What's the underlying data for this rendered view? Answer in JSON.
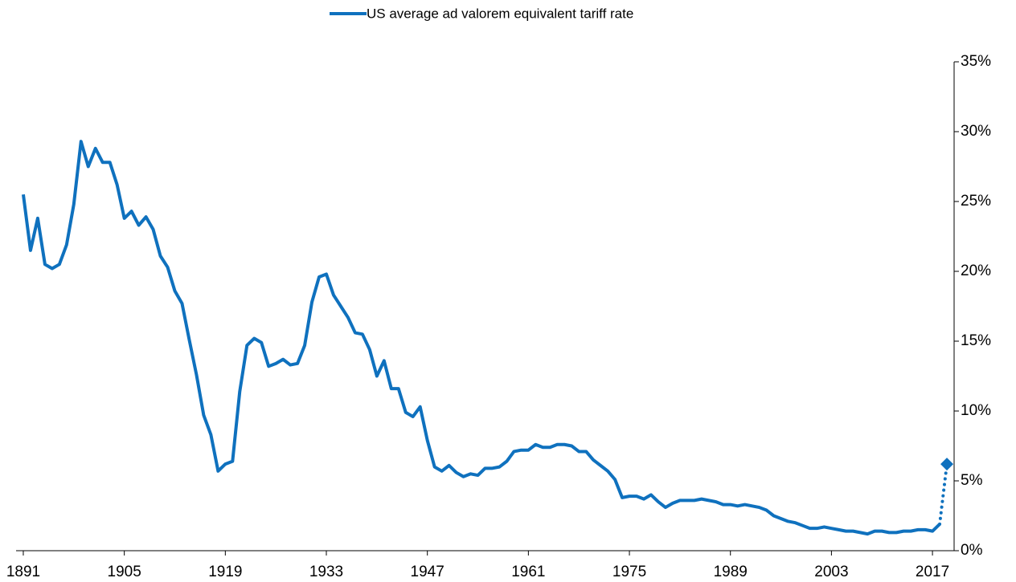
{
  "chart_data": {
    "type": "line",
    "x": [
      1891,
      1892,
      1893,
      1894,
      1895,
      1896,
      1897,
      1898,
      1899,
      1900,
      1901,
      1902,
      1903,
      1904,
      1905,
      1906,
      1907,
      1908,
      1909,
      1910,
      1911,
      1912,
      1913,
      1914,
      1915,
      1916,
      1917,
      1918,
      1919,
      1920,
      1921,
      1922,
      1923,
      1924,
      1925,
      1926,
      1927,
      1928,
      1929,
      1930,
      1931,
      1932,
      1933,
      1934,
      1935,
      1936,
      1937,
      1938,
      1939,
      1940,
      1941,
      1942,
      1943,
      1944,
      1945,
      1946,
      1947,
      1948,
      1949,
      1950,
      1951,
      1952,
      1953,
      1954,
      1955,
      1956,
      1957,
      1958,
      1959,
      1960,
      1961,
      1962,
      1963,
      1964,
      1965,
      1966,
      1967,
      1968,
      1969,
      1970,
      1971,
      1972,
      1973,
      1974,
      1975,
      1976,
      1977,
      1978,
      1979,
      1980,
      1981,
      1982,
      1983,
      1984,
      1985,
      1986,
      1987,
      1988,
      1989,
      1990,
      1991,
      1992,
      1993,
      1994,
      1995,
      1996,
      1997,
      1998,
      1999,
      2000,
      2001,
      2002,
      2003,
      2004,
      2005,
      2006,
      2007,
      2008,
      2009,
      2010,
      2011,
      2012,
      2013,
      2014,
      2015,
      2016,
      2017,
      2018
    ],
    "series": [
      {
        "name": "US average ad valorem equivalent tariff rate",
        "color": "#0F71BE",
        "values": [
          25.5,
          21.5,
          23.8,
          20.5,
          20.2,
          20.5,
          21.9,
          24.8,
          29.3,
          27.5,
          28.8,
          27.8,
          27.8,
          26.2,
          23.8,
          24.3,
          23.3,
          23.9,
          23.0,
          21.1,
          20.3,
          18.6,
          17.7,
          15.1,
          12.6,
          9.7,
          8.3,
          5.7,
          6.2,
          6.4,
          11.4,
          14.7,
          15.2,
          14.9,
          13.2,
          13.4,
          13.7,
          13.3,
          13.4,
          14.7,
          17.8,
          19.6,
          19.8,
          18.3,
          17.5,
          16.7,
          15.6,
          15.5,
          14.4,
          12.5,
          13.6,
          11.6,
          11.6,
          9.9,
          9.6,
          10.3,
          7.9,
          6.0,
          5.7,
          6.1,
          5.6,
          5.3,
          5.5,
          5.4,
          5.9,
          5.9,
          6.0,
          6.4,
          7.1,
          7.2,
          7.2,
          7.6,
          7.4,
          7.4,
          7.6,
          7.6,
          7.5,
          7.1,
          7.1,
          6.5,
          6.1,
          5.7,
          5.1,
          3.8,
          3.9,
          3.9,
          3.7,
          4.0,
          3.5,
          3.1,
          3.4,
          3.6,
          3.6,
          3.6,
          3.7,
          3.6,
          3.5,
          3.3,
          3.3,
          3.2,
          3.3,
          3.2,
          3.1,
          2.9,
          2.5,
          2.3,
          2.1,
          2.0,
          1.8,
          1.6,
          1.6,
          1.7,
          1.6,
          1.5,
          1.4,
          1.4,
          1.3,
          1.2,
          1.4,
          1.4,
          1.3,
          1.3,
          1.4,
          1.4,
          1.5,
          1.5,
          1.4,
          1.9
        ]
      }
    ],
    "projection": {
      "x": 2019,
      "value": 6.2
    },
    "xlim": [
      1890,
      2020
    ],
    "xticks": [
      1891,
      1905,
      1919,
      1933,
      1947,
      1961,
      1975,
      1989,
      2003,
      2017
    ],
    "ylim": [
      0,
      35
    ],
    "yticks": [
      {
        "value": 0,
        "label": "0%"
      },
      {
        "value": 5,
        "label": "5%"
      },
      {
        "value": 10,
        "label": "10%"
      },
      {
        "value": 15,
        "label": "15%"
      },
      {
        "value": 20,
        "label": "20%"
      },
      {
        "value": 25,
        "label": "25%"
      },
      {
        "value": 30,
        "label": "30%"
      },
      {
        "value": 35,
        "label": "35%"
      }
    ],
    "legend": "top"
  }
}
